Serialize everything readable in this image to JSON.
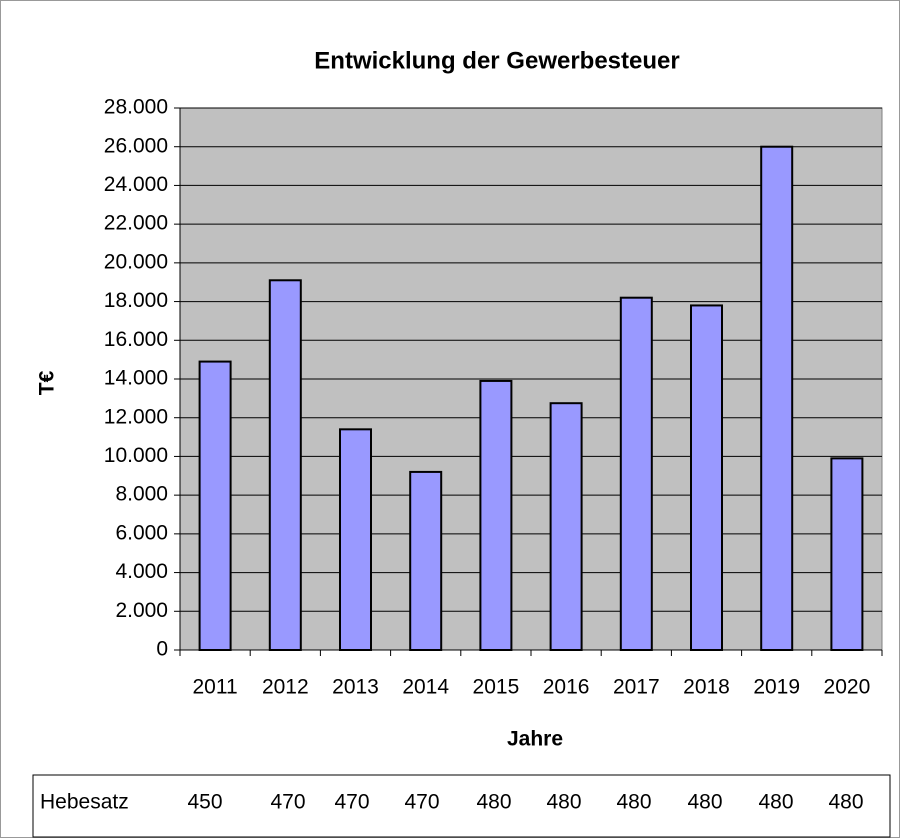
{
  "chart_data": {
    "type": "bar",
    "title": "Entwicklung der Gewerbesteuer",
    "x_label": "Jahre",
    "y_label": "T€",
    "categories": [
      "2011",
      "2012",
      "2013",
      "2014",
      "2015",
      "2016",
      "2017",
      "2018",
      "2019",
      "2020"
    ],
    "values": [
      14900,
      19100,
      11400,
      9200,
      13900,
      12750,
      18200,
      17800,
      26000,
      9900
    ],
    "color": "#9999ff",
    "ylim": [
      0,
      28000
    ],
    "yticks": [
      0,
      {
        "value": 2000,
        "label": "2.000"
      },
      {
        "value": 4000,
        "label": "4.000"
      },
      {
        "value": 6000,
        "label": "6.000"
      },
      {
        "value": 8000,
        "label": "8.000"
      },
      {
        "value": 10000,
        "label": "10.000"
      },
      {
        "value": 12000,
        "label": "12.000"
      },
      {
        "value": 14000,
        "label": "14.000"
      },
      {
        "value": 16000,
        "label": "16.000"
      },
      {
        "value": 18000,
        "label": "18.000"
      },
      {
        "value": 20000,
        "label": "20.000"
      },
      {
        "value": 22000,
        "label": "22.000"
      },
      {
        "value": 24000,
        "label": "24.000"
      },
      {
        "value": 26000,
        "label": "26.000"
      },
      {
        "value": 28000,
        "label": "28.000"
      }
    ],
    "grid": true
  },
  "table": {
    "label": "Hebesatz",
    "values": [
      450,
      470,
      470,
      470,
      480,
      480,
      480,
      480,
      480,
      480
    ]
  }
}
